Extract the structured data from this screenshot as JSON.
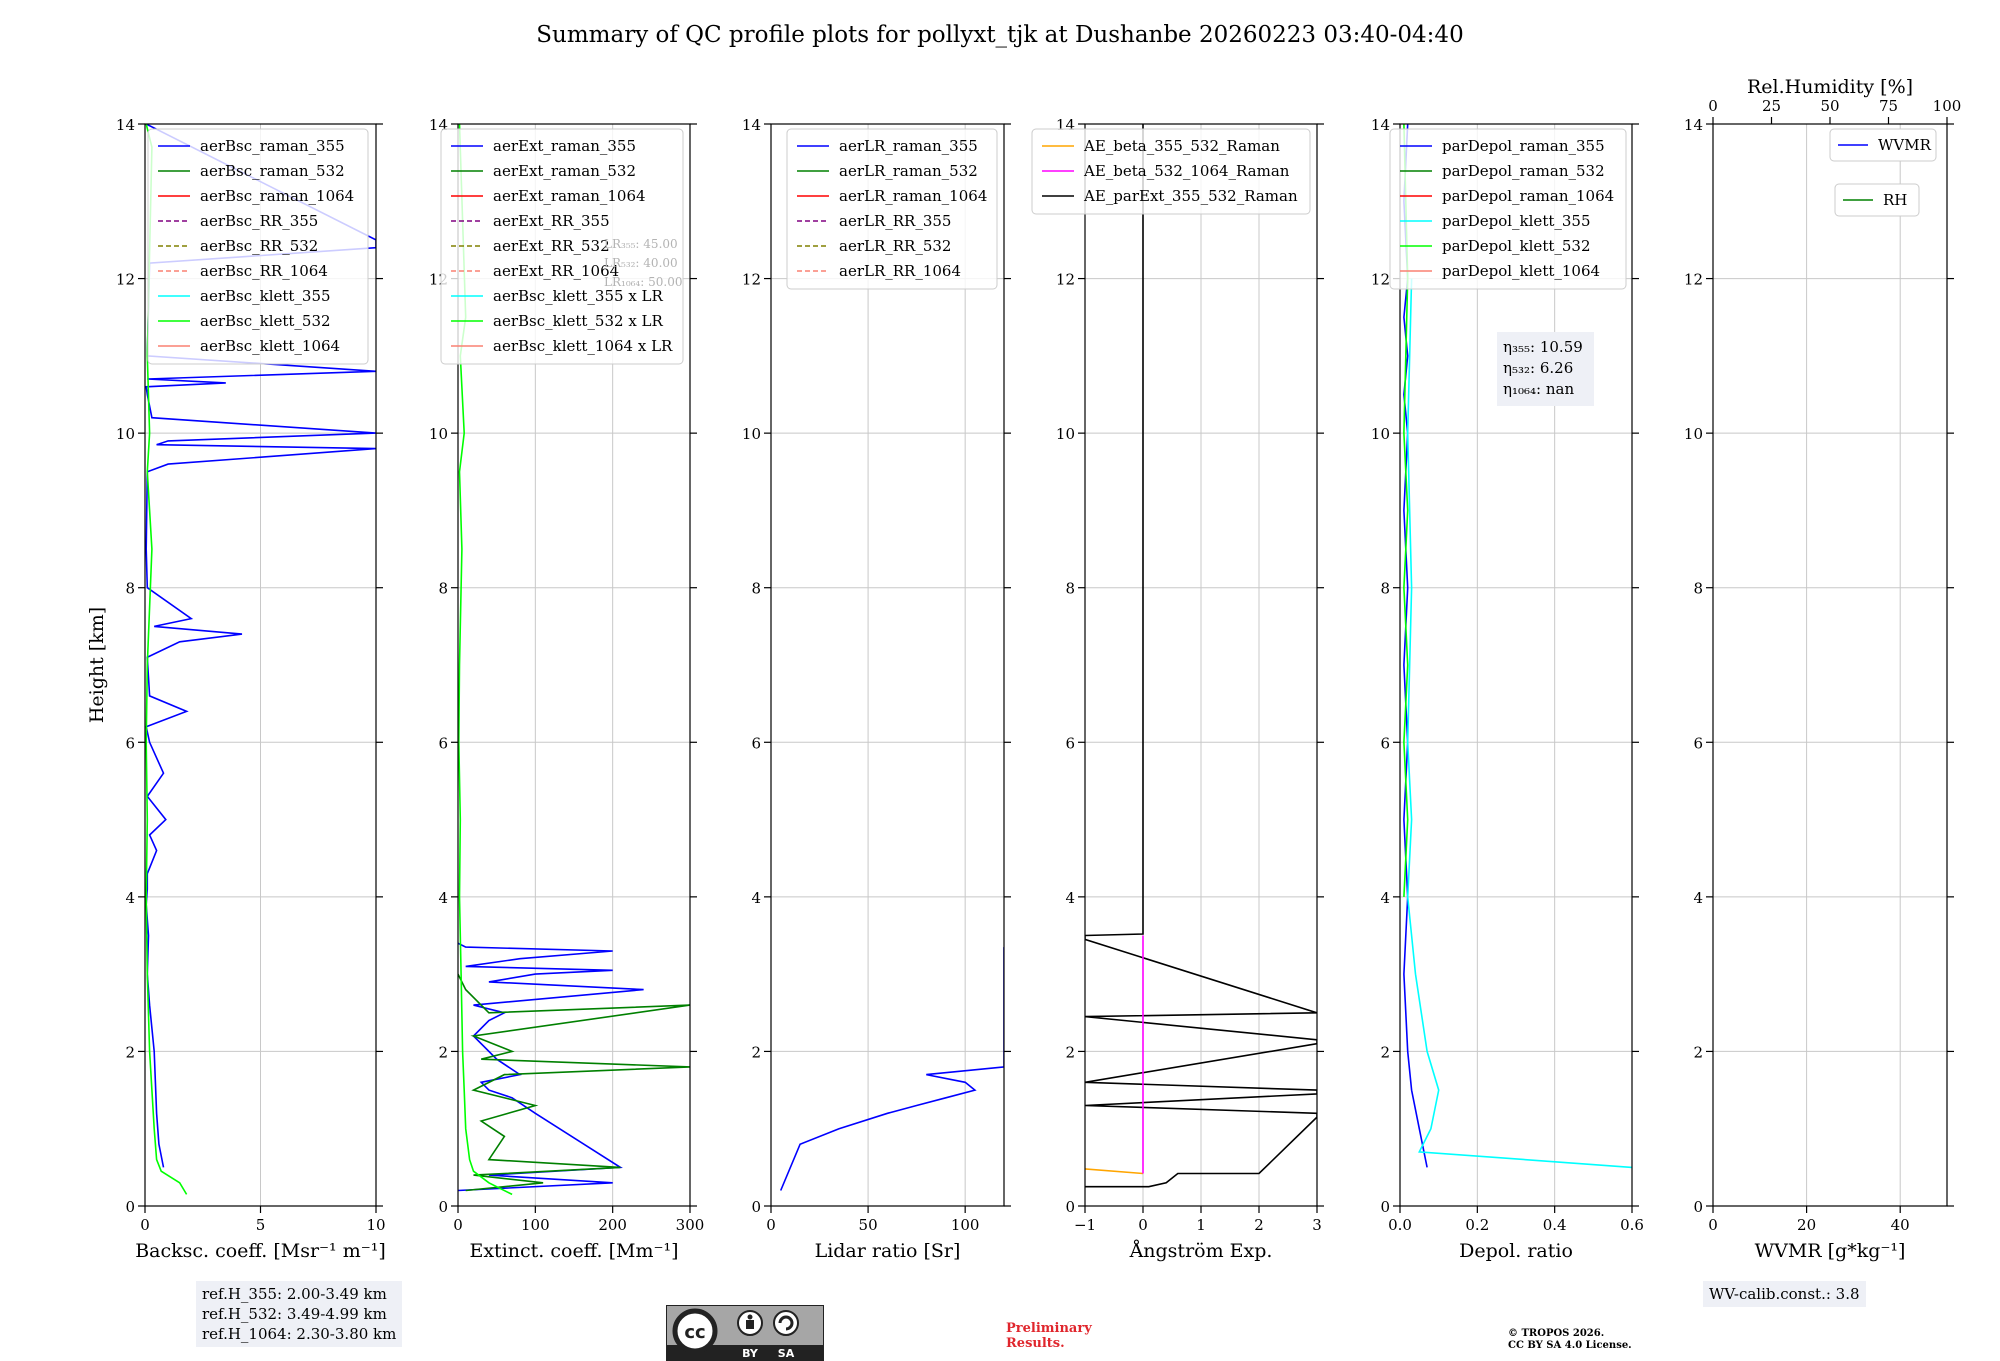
{
  "title": "Summary of QC profile plots for pollyxt_tjk at Dushanbe 20260223 03:40-04:40",
  "ylabel": "Height [km]",
  "ylim": [
    0,
    14
  ],
  "yticks": [
    0,
    2,
    4,
    6,
    8,
    10,
    12,
    14
  ],
  "panels": [
    {
      "id": "backscatter",
      "xlabel": "Backsc. coeff. [Msr⁻¹ m⁻¹]",
      "xlim": [
        0,
        10
      ],
      "xticks": [
        0,
        5,
        10
      ],
      "legend": [
        {
          "label": "aerBsc_raman_355",
          "color": "#0000ff",
          "dash": false
        },
        {
          "label": "aerBsc_raman_532",
          "color": "#008000",
          "dash": false
        },
        {
          "label": "aerBsc_raman_1064",
          "color": "#ff0000",
          "dash": false
        },
        {
          "label": "aerBsc_RR_355",
          "color": "#800080",
          "dash": true
        },
        {
          "label": "aerBsc_RR_532",
          "color": "#808000",
          "dash": true
        },
        {
          "label": "aerBsc_RR_1064",
          "color": "#fa8072",
          "dash": true
        },
        {
          "label": "aerBsc_klett_355",
          "color": "#00ffff",
          "dash": false
        },
        {
          "label": "aerBsc_klett_532",
          "color": "#00ff00",
          "dash": false
        },
        {
          "label": "aerBsc_klett_1064",
          "color": "#fa8072",
          "dash": false
        }
      ]
    },
    {
      "id": "extinction",
      "xlabel": "Extinct. coeff. [Mm⁻¹]",
      "xlim": [
        0,
        300
      ],
      "xticks": [
        0,
        100,
        200,
        300
      ],
      "legend": [
        {
          "label": "aerExt_raman_355",
          "color": "#0000ff",
          "dash": false
        },
        {
          "label": "aerExt_raman_532",
          "color": "#008000",
          "dash": false
        },
        {
          "label": "aerExt_raman_1064",
          "color": "#ff0000",
          "dash": false
        },
        {
          "label": "aerExt_RR_355",
          "color": "#800080",
          "dash": true
        },
        {
          "label": "aerExt_RR_532",
          "color": "#808000",
          "dash": true
        },
        {
          "label": "aerExt_RR_1064",
          "color": "#fa8072",
          "dash": true
        },
        {
          "label": "aerBsc_klett_355 x LR",
          "color": "#00ffff",
          "dash": false
        },
        {
          "label": "aerBsc_klett_532 x LR",
          "color": "#00ff00",
          "dash": false
        },
        {
          "label": "aerBsc_klett_1064 x LR",
          "color": "#fa8072",
          "dash": false
        }
      ],
      "lr_note": [
        "LR₃₅₅: 45.00",
        "LR₅₃₂: 40.00",
        "LR₁₀₆₄: 50.00"
      ]
    },
    {
      "id": "lidar_ratio",
      "xlabel": "Lidar ratio [Sr]",
      "xlim": [
        0,
        120
      ],
      "xticks": [
        0,
        50,
        100
      ],
      "legend": [
        {
          "label": "aerLR_raman_355",
          "color": "#0000ff",
          "dash": false
        },
        {
          "label": "aerLR_raman_532",
          "color": "#008000",
          "dash": false
        },
        {
          "label": "aerLR_raman_1064",
          "color": "#ff0000",
          "dash": false
        },
        {
          "label": "aerLR_RR_355",
          "color": "#800080",
          "dash": true
        },
        {
          "label": "aerLR_RR_532",
          "color": "#808000",
          "dash": true
        },
        {
          "label": "aerLR_RR_1064",
          "color": "#fa8072",
          "dash": true
        }
      ]
    },
    {
      "id": "angstrom",
      "xlabel": "Ångström Exp.",
      "xlim": [
        -1,
        3
      ],
      "xticks": [
        -1,
        0,
        1,
        2,
        3
      ],
      "xticklabels": [
        "−1",
        "0",
        "1",
        "2",
        "3"
      ],
      "legend": [
        {
          "label": "AE_beta_355_532_Raman",
          "color": "#ffa500",
          "dash": false
        },
        {
          "label": "AE_beta_532_1064_Raman",
          "color": "#ff00ff",
          "dash": false
        },
        {
          "label": "AE_parExt_355_532_Raman",
          "color": "#000000",
          "dash": false
        }
      ]
    },
    {
      "id": "depol",
      "xlabel": "Depol. ratio",
      "xlim": [
        0,
        0.6
      ],
      "xticks": [
        0,
        0.2,
        0.4,
        0.6
      ],
      "xticklabels": [
        "0.0",
        "0.2",
        "0.4",
        "0.6"
      ],
      "legend": [
        {
          "label": "parDepol_raman_355",
          "color": "#0000ff",
          "dash": false
        },
        {
          "label": "parDepol_raman_532",
          "color": "#008000",
          "dash": false
        },
        {
          "label": "parDepol_raman_1064",
          "color": "#ff0000",
          "dash": false
        },
        {
          "label": "parDepol_klett_355",
          "color": "#00ffff",
          "dash": false
        },
        {
          "label": "parDepol_klett_532",
          "color": "#00ff00",
          "dash": false
        },
        {
          "label": "parDepol_klett_1064",
          "color": "#fa8072",
          "dash": false
        }
      ],
      "eta_note": [
        "η₃₅₅: 10.59",
        "η₅₃₂: 6.26",
        "η₁₀₆₄: nan"
      ]
    },
    {
      "id": "wvmr",
      "xlabel": "WVMR [g*kg⁻¹]",
      "xlim": [
        0,
        50
      ],
      "xticks": [
        0,
        20,
        40
      ],
      "top_xlabel": "Rel.Humidity [%]",
      "top_xlim": [
        0,
        100
      ],
      "top_xticks": [
        0,
        25,
        50,
        75,
        100
      ],
      "legend": [
        {
          "label": "WVMR",
          "color": "#0000ff",
          "dash": false
        },
        {
          "label": "RH",
          "color": "#008000",
          "dash": false
        }
      ]
    }
  ],
  "chart_data": {
    "type": "line",
    "title": "Summary of QC profile plots for pollyxt_tjk at Dushanbe 20260223 03:40-04:40",
    "ylabel": "Height [km]",
    "ylim": [
      0,
      14
    ],
    "series": [
      {
        "panel": "backscatter",
        "name": "aerBsc_raman_355",
        "color": "#0000ff",
        "x": [
          0.8,
          0.6,
          0.5,
          0.45,
          0.4,
          0.3,
          0.2,
          0.1,
          0.15,
          0.05,
          0.1,
          0.1,
          0.5,
          0.2,
          0.9,
          0.1,
          0.8,
          0.2,
          0.05,
          1.8,
          0.2,
          0.1,
          1.5,
          4.2,
          0.4,
          2.0,
          0.1,
          0.05,
          0.1,
          1.0,
          10,
          0.5,
          1.0,
          10,
          0.3,
          0.1,
          0.05,
          3.5,
          0.1,
          10,
          0.1,
          0.2,
          10,
          10,
          0.05
        ],
        "y": [
          0.5,
          0.8,
          1.2,
          1.6,
          2.0,
          2.3,
          2.6,
          3.0,
          3.5,
          3.9,
          4.1,
          4.3,
          4.6,
          4.8,
          5.0,
          5.3,
          5.6,
          6.0,
          6.2,
          6.4,
          6.6,
          7.1,
          7.3,
          7.4,
          7.5,
          7.6,
          8.0,
          8.5,
          9.5,
          9.6,
          9.8,
          9.85,
          9.9,
          10.0,
          10.2,
          10.5,
          10.6,
          10.65,
          10.7,
          10.8,
          11.0,
          12.2,
          12.4,
          12.5,
          14.0
        ]
      },
      {
        "panel": "backscatter",
        "name": "aerBsc_klett_532",
        "color": "#00ff00",
        "x": [
          1.8,
          1.5,
          0.7,
          0.5,
          0.4,
          0.3,
          0.2,
          0.1,
          0.05,
          0.1,
          0.05,
          0.1,
          0.3,
          0.1,
          0.2,
          0.1,
          0.3,
          0.05
        ],
        "y": [
          0.15,
          0.3,
          0.45,
          0.6,
          1.0,
          1.5,
          2.0,
          3.0,
          4.0,
          5.0,
          6.0,
          7.0,
          8.5,
          9.5,
          10.0,
          11.0,
          13.7,
          14.0
        ]
      },
      {
        "panel": "extinction",
        "name": "aerExt_raman_355",
        "color": "#0000ff",
        "x": [
          0,
          200,
          40,
          210,
          100,
          70,
          40,
          30,
          80,
          50,
          20,
          40,
          60,
          20,
          240,
          40,
          100,
          200,
          10,
          80,
          200,
          10,
          0
        ],
        "y": [
          0.2,
          0.3,
          0.4,
          0.5,
          1.2,
          1.4,
          1.5,
          1.6,
          1.7,
          1.9,
          2.2,
          2.4,
          2.5,
          2.6,
          2.8,
          2.9,
          3.0,
          3.05,
          3.1,
          3.2,
          3.3,
          3.35,
          3.4
        ]
      },
      {
        "panel": "extinction",
        "name": "aerExt_raman_532",
        "color": "#008000",
        "x": [
          10,
          110,
          20,
          210,
          40,
          60,
          30,
          100,
          20,
          60,
          300,
          30,
          70,
          20,
          300,
          40,
          10,
          0
        ],
        "y": [
          0.2,
          0.3,
          0.4,
          0.5,
          0.6,
          0.9,
          1.1,
          1.3,
          1.5,
          1.7,
          1.8,
          1.9,
          2.0,
          2.2,
          2.6,
          2.5,
          2.8,
          3.0
        ]
      },
      {
        "panel": "extinction",
        "name": "aerBsc_klett_532 x LR",
        "color": "#00ff00",
        "x": [
          70,
          40,
          20,
          15,
          10,
          8,
          6,
          4,
          2,
          3,
          1,
          2,
          5,
          2,
          8,
          3,
          10,
          2
        ],
        "y": [
          0.15,
          0.3,
          0.45,
          0.6,
          1.0,
          1.5,
          2.0,
          3.0,
          4.0,
          5.0,
          6.0,
          7.0,
          8.5,
          9.5,
          10.0,
          11.0,
          11.5,
          14.0
        ]
      },
      {
        "panel": "lidar_ratio",
        "name": "aerLR_raman_355",
        "color": "#0000ff",
        "x": [
          5,
          15,
          35,
          60,
          75,
          90,
          105,
          100,
          80,
          120,
          120,
          120,
          120,
          120,
          120,
          120,
          120,
          120,
          120
        ],
        "y": [
          0.2,
          0.8,
          1.0,
          1.2,
          1.3,
          1.4,
          1.5,
          1.6,
          1.7,
          1.8,
          2.0,
          2.2,
          2.4,
          2.6,
          2.7,
          2.8,
          3.0,
          3.2,
          3.35
        ]
      },
      {
        "panel": "angstrom",
        "name": "AE_parExt_355_532_Raman",
        "color": "#000000",
        "x": [
          -1,
          0.1,
          0.4,
          0.6,
          2.0,
          3.0,
          3.0,
          -1,
          3.0,
          3.0,
          -1,
          3.0,
          3.0,
          -1,
          3.0,
          -1,
          -1,
          0,
          0,
          0
        ],
        "y": [
          0.25,
          0.25,
          0.3,
          0.42,
          0.42,
          1.15,
          1.2,
          1.3,
          1.45,
          1.5,
          1.6,
          2.1,
          2.15,
          2.45,
          2.5,
          3.45,
          3.5,
          3.52,
          13.0,
          14.0
        ]
      },
      {
        "panel": "angstrom",
        "name": "AE_beta_355_532_Raman",
        "color": "#ffa500",
        "x": [
          -1,
          0
        ],
        "y": [
          0.48,
          0.42
        ]
      },
      {
        "panel": "angstrom",
        "name": "AE_beta_532_1064_Raman",
        "color": "#ff00ff",
        "x": [
          0,
          0
        ],
        "y": [
          0.42,
          3.5
        ]
      },
      {
        "panel": "depol",
        "name": "parDepol_raman_355",
        "color": "#0000ff",
        "x": [
          0.07,
          0.05,
          0.03,
          0.02,
          0.01,
          0.02,
          0.01,
          0.02,
          0.01,
          0.02,
          0.01,
          0.02,
          0.01,
          0.02,
          0.01,
          0.02,
          0.01,
          0.02
        ],
        "y": [
          0.5,
          1.0,
          1.5,
          2.0,
          3.0,
          4.0,
          5.0,
          6.0,
          7.0,
          8.0,
          9.0,
          10.0,
          10.5,
          11.0,
          11.5,
          12.0,
          13.0,
          14.0
        ]
      },
      {
        "panel": "depol",
        "name": "parDepol_klett_355",
        "color": "#00ffff",
        "x": [
          0.6,
          0.05,
          0.08,
          0.1,
          0.07,
          0.04,
          0.02,
          0.03,
          0.02,
          0.03,
          0.02,
          0.03
        ],
        "y": [
          0.5,
          0.7,
          1.0,
          1.5,
          2.0,
          3.0,
          4.0,
          5.0,
          6.0,
          8.0,
          10.0,
          12.0
        ]
      },
      {
        "panel": "depol",
        "name": "parDepol_klett_532",
        "color": "#00ff00",
        "x": [
          0.01,
          0.02,
          0.01,
          0.02,
          0.01,
          0.02,
          0.01,
          0.02,
          0.01
        ],
        "y": [
          4.0,
          5.0,
          6.0,
          7.0,
          8.0,
          9.0,
          10.0,
          12.0,
          14.0
        ]
      }
    ]
  },
  "ref_info": [
    "ref.H_355: 2.00-3.49 km",
    "ref.H_532: 3.49-4.99 km",
    "ref.H_1064: 2.30-3.80 km"
  ],
  "wv_calib": "WV-calib.const.: 3.8",
  "cc_badge": {
    "by": "BY",
    "sa": "SA"
  },
  "preliminary": [
    "Preliminary",
    "Results."
  ],
  "copyright": [
    "© TROPOS 2026.",
    "CC BY SA 4.0 License."
  ]
}
